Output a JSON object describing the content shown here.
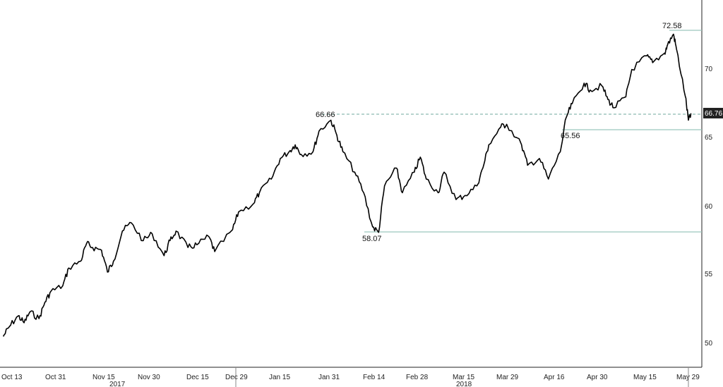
{
  "chart_data": {
    "type": "line",
    "title": "",
    "xlabel": "",
    "ylabel": "",
    "ylim": [
      48,
      75
    ],
    "y_ticks": [
      "50",
      "55",
      "60",
      "65",
      "70"
    ],
    "x_ticks": [
      "Oct 13",
      "Oct 31",
      "Nov 15",
      "Nov 30",
      "Dec 15",
      "Dec 29",
      "Jan 15",
      "Jan 31",
      "Feb 14",
      "Feb 28",
      "Mar 15",
      "Mar 29",
      "Apr 16",
      "Apr 30",
      "May 15",
      "May 29"
    ],
    "years": [
      "2017",
      "2018"
    ],
    "grid": false,
    "series": [
      {
        "x": [
          "Oct 11",
          "Oct 13",
          "Oct 16",
          "Oct 18",
          "Oct 20",
          "Oct 23",
          "Oct 25",
          "Oct 27",
          "Oct 31",
          "Nov 2",
          "Nov 6",
          "Nov 8",
          "Nov 10",
          "Nov 13",
          "Nov 15",
          "Nov 17",
          "Nov 20",
          "Nov 23",
          "Nov 27",
          "Nov 30",
          "Dec 4",
          "Dec 6",
          "Dec 8",
          "Dec 12",
          "Dec 15",
          "Dec 19",
          "Dec 21",
          "Dec 27",
          "Dec 29",
          "Jan 3",
          "Jan 5",
          "Jan 9",
          "Jan 12",
          "Jan 15",
          "Jan 17",
          "Jan 19",
          "Jan 23",
          "Jan 25",
          "Jan 29",
          "Jan 31",
          "Feb 2",
          "Feb 6",
          "Feb 9",
          "Feb 12",
          "Feb 14",
          "Feb 16",
          "Feb 20",
          "Feb 22",
          "Feb 26",
          "Feb 28",
          "Mar 2",
          "Mar 6",
          "Mar 8",
          "Mar 12",
          "Mar 15",
          "Mar 19",
          "Mar 21",
          "Mar 23",
          "Mar 27",
          "Mar 29",
          "Apr 3",
          "Apr 5",
          "Apr 9",
          "Apr 12",
          "Apr 16",
          "Apr 18",
          "Apr 20",
          "Apr 24",
          "Apr 26",
          "Apr 30",
          "May 2",
          "May 4",
          "May 8",
          "May 10",
          "May 15",
          "May 17",
          "May 21",
          "May 22",
          "May 24",
          "May 25",
          "May 28",
          "May 29",
          "May 30"
        ],
        "values": [
          50.5,
          51.2,
          52.0,
          51.5,
          52.3,
          51.8,
          53.0,
          53.8,
          54.2,
          55.5,
          56.0,
          57.3,
          57.0,
          56.8,
          55.2,
          56.0,
          58.2,
          58.8,
          57.5,
          58.0,
          56.4,
          57.5,
          58.2,
          57.0,
          57.2,
          57.8,
          56.7,
          58.3,
          59.6,
          60.2,
          61.0,
          62.0,
          63.5,
          64.0,
          64.5,
          63.8,
          64.0,
          65.5,
          66.3,
          65.2,
          64.0,
          62.5,
          61.0,
          58.5,
          58.1,
          61.5,
          62.8,
          61.0,
          62.5,
          63.6,
          62.0,
          61.0,
          62.5,
          60.5,
          60.8,
          61.5,
          62.8,
          64.5,
          65.8,
          66.0,
          64.5,
          63.0,
          63.5,
          62.0,
          64.0,
          66.5,
          67.5,
          69.0,
          68.5,
          68.8,
          67.8,
          67.2,
          68.0,
          70.0,
          71.0,
          70.5,
          71.2,
          71.8,
          72.58,
          71.5,
          68.0,
          66.3,
          66.76
        ]
      }
    ],
    "annotations": [
      "72.58",
      "66.66",
      "65.56",
      "58.07"
    ],
    "last_value": "66.76"
  }
}
